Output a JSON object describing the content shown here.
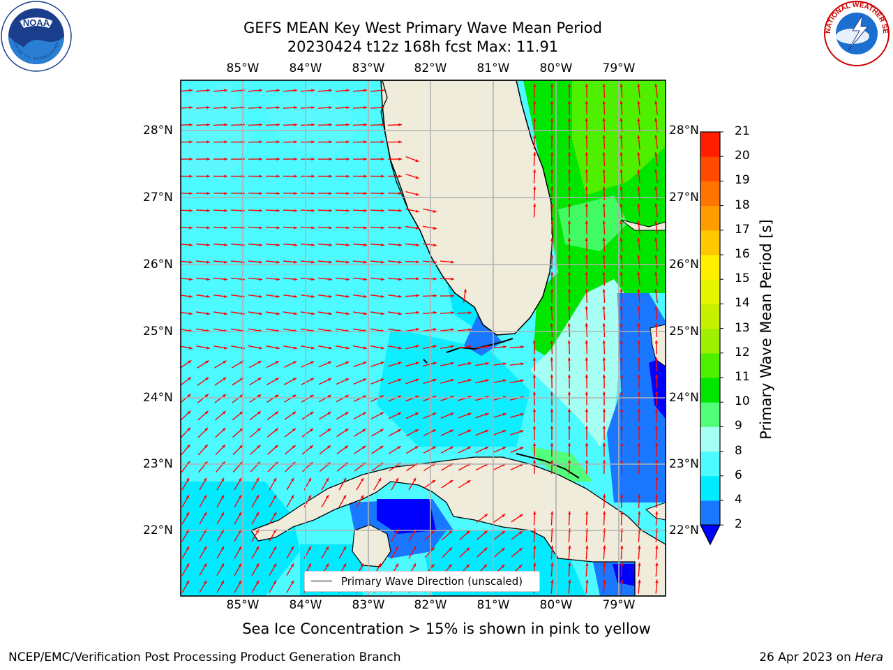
{
  "header": {
    "title_line1": "GEFS MEAN Key West Primary Wave Mean Period",
    "title_line2": "20230424 t12z 168h fcst   Max: 11.91"
  },
  "logos": {
    "noaa_text": "NOAA",
    "noaa_ring_text": "NATIONAL OCEANIC AND ATMOSPHERIC ADMINISTRATION · U.S. DEPARTMENT OF COMMERCE",
    "nws_ring_text": "NATIONAL WEATHER SERVICE"
  },
  "map": {
    "lon_labels": [
      "85°W",
      "84°W",
      "83°W",
      "82°W",
      "81°W",
      "80°W",
      "79°W"
    ],
    "lat_labels": [
      "28°N",
      "27°N",
      "26°N",
      "25°N",
      "24°N",
      "23°N",
      "22°N"
    ],
    "legend_text": "Primary Wave Direction (unscaled)",
    "colors": {
      "land": "#efecdc",
      "coast": "#000000",
      "grid": "#b0b0b0",
      "arrows": "#ff0000"
    }
  },
  "colorbar": {
    "title": "Primary Wave Mean Period [s]",
    "tick_labels": [
      "2",
      "4",
      "6",
      "8",
      "9",
      "10",
      "11",
      "12",
      "13",
      "14",
      "15",
      "16",
      "17",
      "18",
      "19",
      "20",
      "21"
    ],
    "bins": [
      {
        "from": 2,
        "to": 4,
        "color": "#1978ff"
      },
      {
        "from": 4,
        "to": 6,
        "color": "#00ebff"
      },
      {
        "from": 6,
        "to": 8,
        "color": "#4dfaff"
      },
      {
        "from": 8,
        "to": 9,
        "color": "#a6fff2"
      },
      {
        "from": 9,
        "to": 10,
        "color": "#52ff7a"
      },
      {
        "from": 10,
        "to": 11,
        "color": "#00e600"
      },
      {
        "from": 11,
        "to": 12,
        "color": "#4ef000"
      },
      {
        "from": 12,
        "to": 13,
        "color": "#9ef000"
      },
      {
        "from": 13,
        "to": 14,
        "color": "#c7f000"
      },
      {
        "from": 14,
        "to": 15,
        "color": "#e6f500"
      },
      {
        "from": 15,
        "to": 16,
        "color": "#fff000"
      },
      {
        "from": 16,
        "to": 17,
        "color": "#ffc800"
      },
      {
        "from": 17,
        "to": 18,
        "color": "#ff9c00"
      },
      {
        "from": 18,
        "to": 19,
        "color": "#ff7400"
      },
      {
        "from": 19,
        "to": 20,
        "color": "#ff4a00"
      },
      {
        "from": 20,
        "to": 21,
        "color": "#ff1e00"
      }
    ],
    "under_color": "#0000ff"
  },
  "footer": {
    "ice_note": "Sea Ice Concentration > 15% is shown in pink to yellow",
    "credit": "NCEP/EMC/Verification Post Processing Product Generation Branch",
    "date": "26 Apr 2023 on ",
    "host": "Hera"
  }
}
